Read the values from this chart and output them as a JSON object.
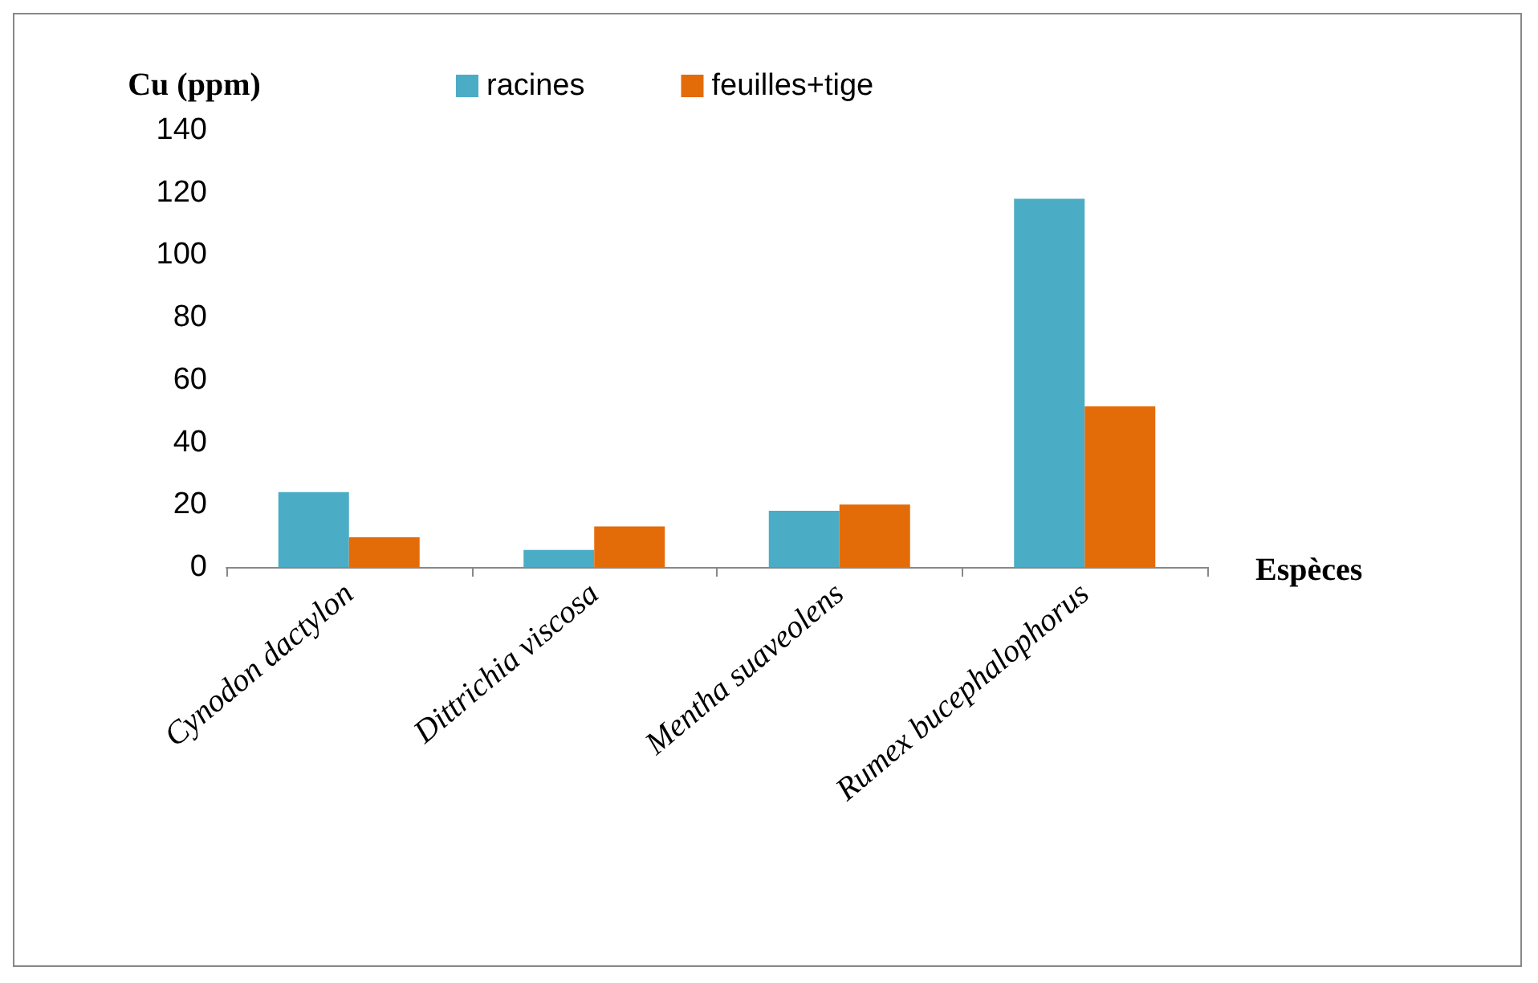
{
  "chart_data": {
    "type": "bar",
    "ylabel": "Cu (ppm)",
    "xlabel": "Espèces",
    "categories": [
      "Cynodon dactylon",
      "Dittrichia viscosa",
      "Mentha suaveolens",
      "Rumex bucephalophorus"
    ],
    "series": [
      {
        "name": "racines",
        "color": "#4bacc6",
        "values": [
          24,
          5.5,
          18,
          118
        ]
      },
      {
        "name": "feuilles+tige",
        "color": "#e36c09",
        "values": [
          9.5,
          13,
          20,
          51.5
        ]
      }
    ],
    "ylim": [
      0,
      140
    ],
    "yticks": [
      0,
      20,
      40,
      60,
      80,
      100,
      120,
      140
    ],
    "grid": false,
    "legend": "top"
  }
}
